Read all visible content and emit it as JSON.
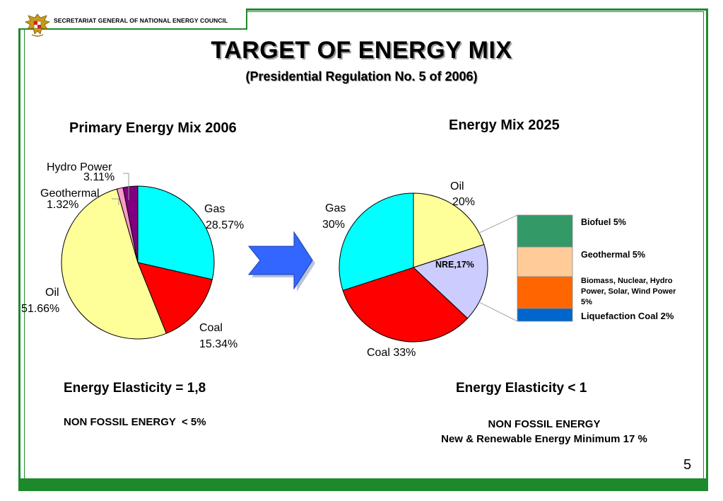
{
  "header": {
    "organization": "SECRETARIAT GENERAL OF NATIONAL ENERGY COUNCIL",
    "title": "TARGET OF ENERGY MIX",
    "subtitle": "(Presidential Regulation No. 5 of 2006)"
  },
  "left": {
    "heading": "Primary Energy Mix 2006",
    "labels": {
      "hydro_name": "Hydro Power",
      "hydro_value": "3.11%",
      "geo_name": "Geothermal",
      "geo_value": "1.32%",
      "gas_name": "Gas",
      "gas_value": "28.57%",
      "coal_name": "Coal",
      "coal_value": "15.34%",
      "oil_name": "Oil",
      "oil_value": "51.66%"
    },
    "elasticity": "Energy Elasticity = 1,8",
    "non_fossil": "NON FOSSIL ENERGY  < 5%"
  },
  "right": {
    "heading": "Energy Mix 2025",
    "labels": {
      "oil_name": "Oil",
      "oil_value": "20%",
      "gas_name": "Gas",
      "gas_value": "30%",
      "nre": "NRE,17%",
      "coal": "Coal 33%"
    },
    "breakdown": {
      "biofuel": "Biofuel 5%",
      "geothermal": "Geothermal 5%",
      "biomass_line1": "Biomass, Nuclear, Hydro",
      "biomass_line2": "Power, Solar, Wind Power",
      "biomass_line3": "5%",
      "liquefaction": "Liquefaction Coal 2%"
    },
    "elasticity": "Energy Elasticity < 1",
    "non_fossil_line1": "NON FOSSIL ENERGY",
    "non_fossil_line2": "New & Renewable Energy Minimum 17 %"
  },
  "page_number": "5",
  "colors": {
    "frame_green": "#1c8a2c",
    "gas": "#00ffff",
    "coal": "#ff0000",
    "oil": "#ffff99",
    "geothermal_2006": "#ff99cc",
    "hydro_2006": "#800080",
    "nre": "#ccccff",
    "biofuel": "#339966",
    "geothermal_2025": "#ffcc99",
    "biomass": "#ff6600",
    "liquefaction": "#0066cc",
    "arrow": "#3366ff"
  },
  "chart_data": [
    {
      "type": "pie",
      "title": "Primary Energy Mix 2006",
      "categories": [
        "Gas",
        "Coal",
        "Oil",
        "Geothermal",
        "Hydro Power"
      ],
      "values": [
        28.57,
        15.34,
        51.66,
        1.32,
        3.11
      ]
    },
    {
      "type": "pie",
      "title": "Energy Mix 2025",
      "categories": [
        "Oil",
        "NRE",
        "Coal",
        "Gas"
      ],
      "values": [
        20,
        17,
        33,
        30
      ],
      "breakdown": {
        "of": "NRE",
        "categories": [
          "Biofuel",
          "Geothermal",
          "Biomass, Nuclear, Hydro Power, Solar, Wind Power",
          "Liquefaction Coal"
        ],
        "values": [
          5,
          5,
          5,
          2
        ]
      }
    }
  ]
}
